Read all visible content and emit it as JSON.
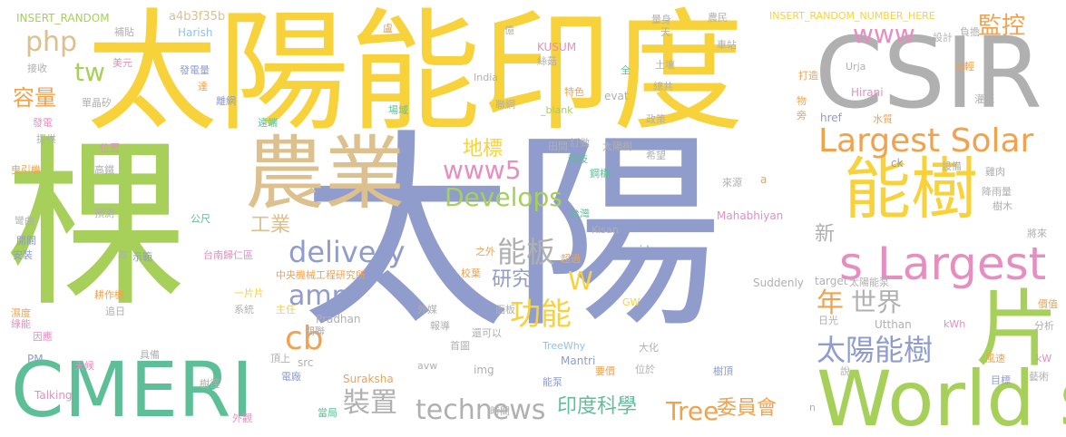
{
  "palette": {
    "slate_blue": "#8f9ccc",
    "yellow": "#f7d23a",
    "green": "#a6d05a",
    "gray": "#b0b0b0",
    "tan": "#dcc08e",
    "teal": "#5dbf97",
    "pink": "#e48fc0",
    "orange": "#f2a24d",
    "light_blue": "#8ec4e8"
  },
  "words": [
    {
      "id": "w1",
      "text": "太陽"
    },
    {
      "id": "w2",
      "text": "棵"
    },
    {
      "id": "w3",
      "text": "太陽能印度"
    },
    {
      "id": "w4",
      "text": "CSIR"
    },
    {
      "id": "w5",
      "text": "CMERI"
    },
    {
      "id": "w6",
      "text": "World s"
    },
    {
      "id": "w7",
      "text": "農業"
    },
    {
      "id": "w8",
      "text": "能樹"
    },
    {
      "id": "w9",
      "text": "片"
    },
    {
      "id": "w10",
      "text": "s Largest"
    },
    {
      "id": "w11",
      "text": "Largest Solar"
    },
    {
      "id": "w12",
      "text": "太陽能樹"
    },
    {
      "id": "w13",
      "text": "technews"
    },
    {
      "id": "w14",
      "text": "delivery"
    },
    {
      "id": "w15",
      "text": "Develops"
    },
    {
      "id": "w16",
      "text": "www5"
    },
    {
      "id": "w17",
      "text": "amp"
    },
    {
      "id": "w18",
      "text": "cb"
    },
    {
      "id": "w19",
      "text": "能板"
    },
    {
      "id": "w20",
      "text": "功能"
    },
    {
      "id": "w21",
      "text": "世界"
    },
    {
      "id": "w22",
      "text": "裝置"
    },
    {
      "id": "w23",
      "text": "印度科學"
    },
    {
      "id": "w24",
      "text": "委員會"
    },
    {
      "id": "w25",
      "text": "Tree"
    },
    {
      "id": "w26",
      "text": "php"
    },
    {
      "id": "w27",
      "text": "www"
    },
    {
      "id": "w28",
      "text": "監控"
    },
    {
      "id": "w29",
      "text": "容量"
    },
    {
      "id": "w30",
      "text": "地標"
    },
    {
      "id": "w31",
      "text": "研究"
    },
    {
      "id": "w32",
      "text": "工業"
    },
    {
      "id": "w33",
      "text": "W"
    },
    {
      "id": "w34",
      "text": "年"
    },
    {
      "id": "w35",
      "text": "tw"
    },
    {
      "id": "w36",
      "text": "新"
    },
    {
      "id": "w37",
      "text": "INSERT_RANDOM"
    },
    {
      "id": "w38",
      "text": "a4b3f35b"
    },
    {
      "id": "w39",
      "text": "INSERT_RANDOM_NUMBER_HERE"
    },
    {
      "id": "w40",
      "text": "Harish"
    },
    {
      "id": "w41",
      "text": "KUSUM"
    },
    {
      "id": "w42",
      "text": "India"
    },
    {
      "id": "w43",
      "text": "evat"
    },
    {
      "id": "w44",
      "text": "_blank"
    },
    {
      "id": "w45",
      "text": "Urja"
    },
    {
      "id": "w46",
      "text": "Hirani"
    },
    {
      "id": "w47",
      "text": "href"
    },
    {
      "id": "w48",
      "text": "ck"
    },
    {
      "id": "w49",
      "text": "a"
    },
    {
      "id": "w50",
      "text": "Mahabhiyan"
    },
    {
      "id": "w51",
      "text": "Kisan"
    },
    {
      "id": "w52",
      "text": "zoneid"
    },
    {
      "id": "w53",
      "text": "Suddenly"
    },
    {
      "id": "w54",
      "text": "target"
    },
    {
      "id": "w55",
      "text": "Pradhan"
    },
    {
      "id": "w56",
      "text": "TreeWhy"
    },
    {
      "id": "w57",
      "text": "Mantri"
    },
    {
      "id": "w58",
      "text": "Utthan"
    },
    {
      "id": "w59",
      "text": "kWh"
    },
    {
      "id": "w60",
      "text": "kW"
    },
    {
      "id": "w61",
      "text": "PM"
    },
    {
      "id": "w62",
      "text": "src"
    },
    {
      "id": "w63",
      "text": "avw"
    },
    {
      "id": "w64",
      "text": "img"
    },
    {
      "id": "w65",
      "text": "Suraksha"
    },
    {
      "id": "w66",
      "text": "Talking"
    },
    {
      "id": "w67",
      "text": "GW"
    },
    {
      "id": "w68",
      "text": "n"
    },
    {
      "id": "w69",
      "text": "補貼"
    },
    {
      "id": "w70",
      "text": "接收"
    },
    {
      "id": "w71",
      "text": "美元"
    },
    {
      "id": "w72",
      "text": "單晶矽"
    },
    {
      "id": "w73",
      "text": "發電量"
    },
    {
      "id": "w74",
      "text": "達"
    },
    {
      "id": "w75",
      "text": "離網"
    },
    {
      "id": "w76",
      "text": "遠端"
    },
    {
      "id": "w77",
      "text": "場域"
    },
    {
      "id": "w78",
      "text": "發電"
    },
    {
      "id": "w79",
      "text": "提供"
    },
    {
      "id": "w80",
      "text": "位置"
    },
    {
      "id": "w81",
      "text": "高鐵"
    },
    {
      "id": "w82",
      "text": "曳引機"
    },
    {
      "id": "w83",
      "text": "預測"
    },
    {
      "id": "w84",
      "text": "公尺"
    },
    {
      "id": "w85",
      "text": "彎曲"
    },
    {
      "id": "w86",
      "text": "開關"
    },
    {
      "id": "w87",
      "text": "安裝"
    },
    {
      "id": "w88",
      "text": "高"
    },
    {
      "id": "w89",
      "text": "台南歸仁區"
    },
    {
      "id": "w90",
      "text": "示範"
    },
    {
      "id": "w91",
      "text": "中央機械工程研究所"
    },
    {
      "id": "w92",
      "text": "耕作機"
    },
    {
      "id": "w93",
      "text": "一片片"
    },
    {
      "id": "w94",
      "text": "追日"
    },
    {
      "id": "w95",
      "text": "系統"
    },
    {
      "id": "w96",
      "text": "主任"
    },
    {
      "id": "w97",
      "text": "濕度"
    },
    {
      "id": "w98",
      "text": "綠能"
    },
    {
      "id": "w99",
      "text": "因應"
    },
    {
      "id": "w100",
      "text": "天候"
    },
    {
      "id": "w101",
      "text": "具備"
    },
    {
      "id": "w102",
      "text": "頂上"
    },
    {
      "id": "w103",
      "text": "電廠"
    },
    {
      "id": "w104",
      "text": "樹徑"
    },
    {
      "id": "w105",
      "text": "外觀"
    },
    {
      "id": "w106",
      "text": "當局"
    },
    {
      "id": "w107",
      "text": "時間"
    },
    {
      "id": "w108",
      "text": "能泵"
    },
    {
      "id": "w109",
      "text": "要價"
    },
    {
      "id": "w110",
      "text": "位於"
    },
    {
      "id": "w111",
      "text": "樹頂"
    },
    {
      "id": "w112",
      "text": "目標"
    },
    {
      "id": "w113",
      "text": "藝術"
    },
    {
      "id": "w114",
      "text": "說"
    },
    {
      "id": "w115",
      "text": "風速"
    },
    {
      "id": "w116",
      "text": "大化"
    },
    {
      "id": "w117",
      "text": "首圖"
    },
    {
      "id": "w118",
      "text": "報導"
    },
    {
      "id": "w119",
      "text": "還可以"
    },
    {
      "id": "w120",
      "text": "外媒"
    },
    {
      "id": "w121",
      "text": "面板"
    },
    {
      "id": "w122",
      "text": "關聯"
    },
    {
      "id": "w123",
      "text": "校葉"
    },
    {
      "id": "w124",
      "text": "之外"
    },
    {
      "id": "w125",
      "text": "超過"
    },
    {
      "id": "w126",
      "text": "台灣"
    },
    {
      "id": "w127",
      "text": "鋼構"
    },
    {
      "id": "w128",
      "text": "科技"
    },
    {
      "id": "w129",
      "text": "訂做"
    },
    {
      "id": "w130",
      "text": "田間"
    },
    {
      "id": "w131",
      "text": "聯網"
    },
    {
      "id": "w132",
      "text": "特色"
    },
    {
      "id": "w133",
      "text": "絲菇"
    },
    {
      "id": "w134",
      "text": "億"
    },
    {
      "id": "w135",
      "text": "盧"
    },
    {
      "id": "w136",
      "text": "全"
    },
    {
      "id": "w137",
      "text": "天"
    },
    {
      "id": "w138",
      "text": "量身"
    },
    {
      "id": "w139",
      "text": "土壤"
    },
    {
      "id": "w140",
      "text": "總共"
    },
    {
      "id": "w141",
      "text": "政策"
    },
    {
      "id": "w142",
      "text": "太陽樹"
    },
    {
      "id": "w143",
      "text": "希望"
    },
    {
      "id": "w144",
      "text": "農民"
    },
    {
      "id": "w145",
      "text": "車站"
    },
    {
      "id": "w146",
      "text": "設計"
    },
    {
      "id": "w147",
      "text": "負擔"
    },
    {
      "id": "w148",
      "text": "打造"
    },
    {
      "id": "w149",
      "text": "減輕"
    },
    {
      "id": "w150",
      "text": "灌溉"
    },
    {
      "id": "w151",
      "text": "物"
    },
    {
      "id": "w152",
      "text": "旁"
    },
    {
      "id": "w153",
      "text": "水質"
    },
    {
      "id": "w154",
      "text": "設備"
    },
    {
      "id": "w155",
      "text": "雞肉"
    },
    {
      "id": "w156",
      "text": "降雨量"
    },
    {
      "id": "w157",
      "text": "樹木"
    },
    {
      "id": "w158",
      "text": "來源"
    },
    {
      "id": "w159",
      "text": "將來"
    },
    {
      "id": "w160",
      "text": "太陽能泵"
    },
    {
      "id": "w161",
      "text": "價值"
    },
    {
      "id": "w162",
      "text": "日光"
    },
    {
      "id": "w163",
      "text": "分析"
    }
  ]
}
